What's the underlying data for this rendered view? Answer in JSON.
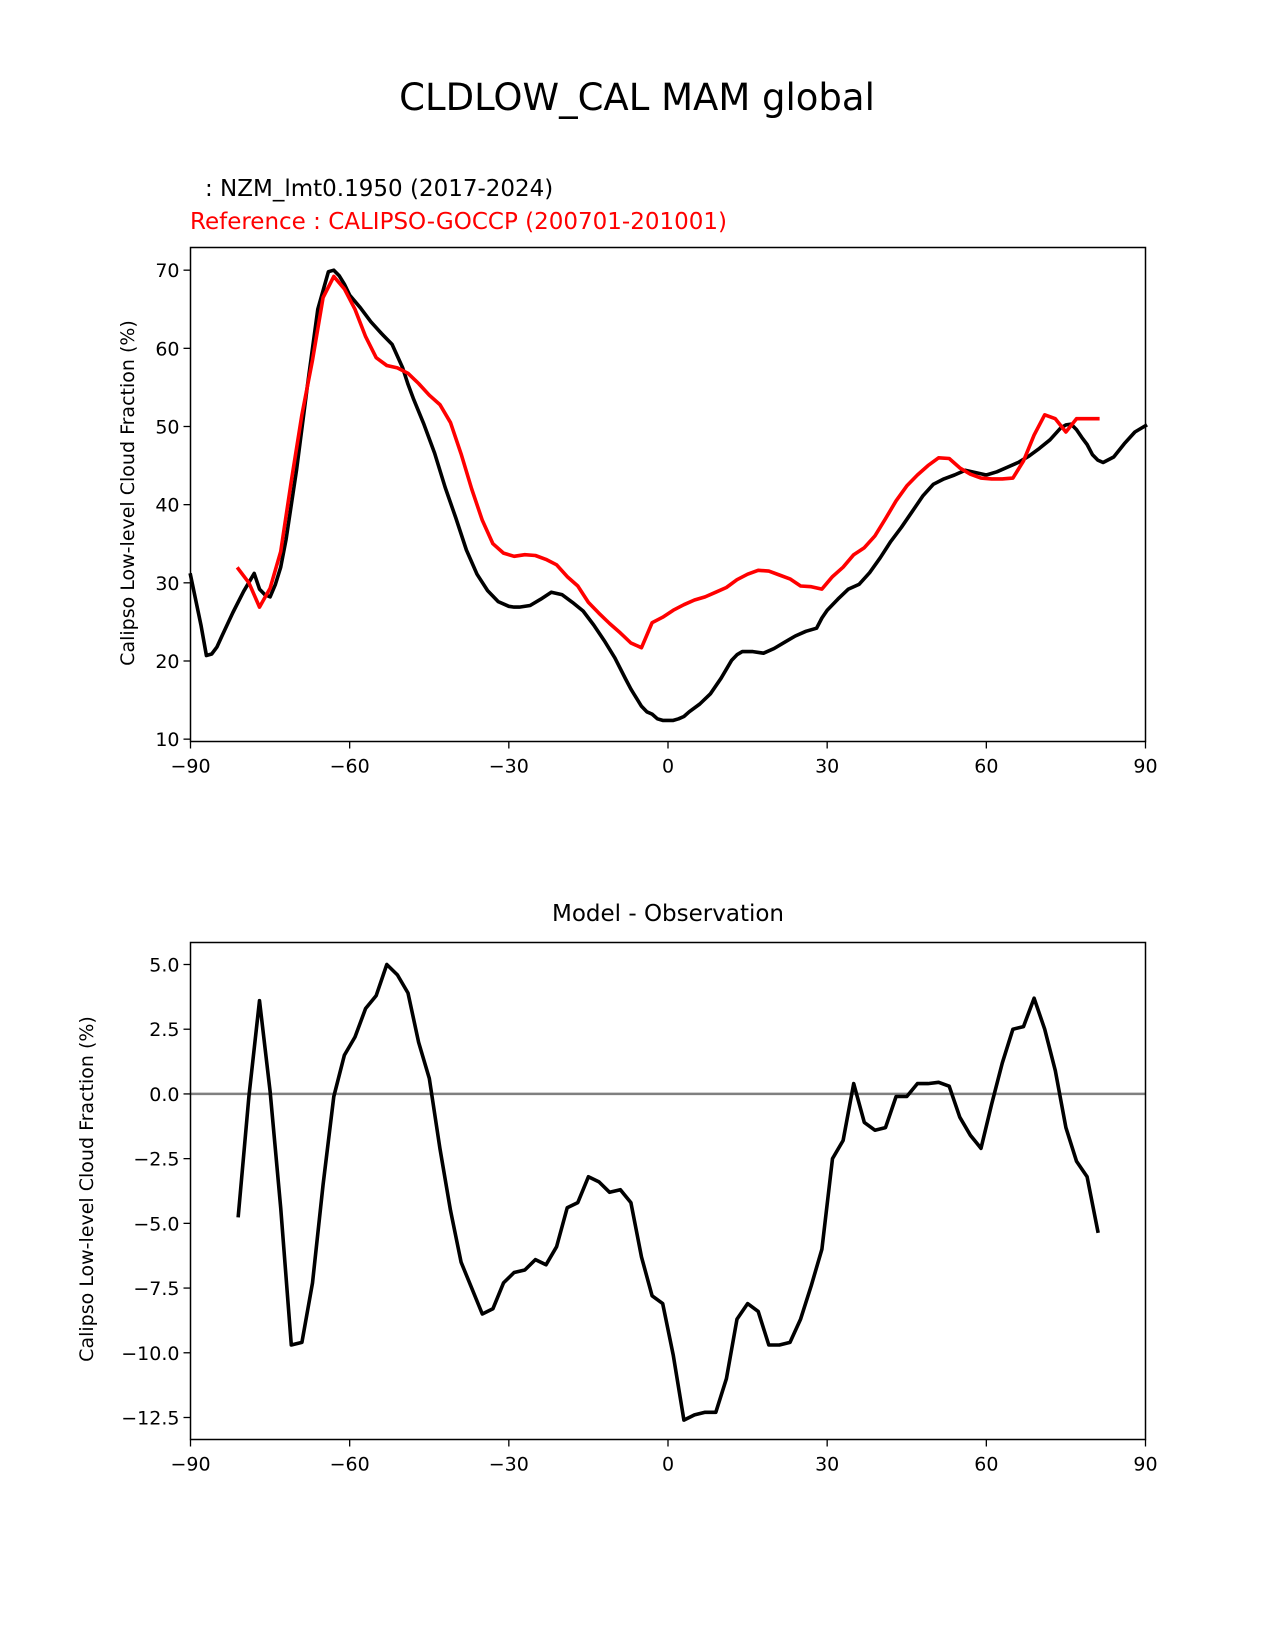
{
  "figure": {
    "suptitle": "CLDLOW_CAL MAM global"
  },
  "chart_data": [
    {
      "type": "line",
      "title_lines": [
        ": NZM_lmt0.1950 (2017-2024)",
        "Reference : CALIPSO-GOCCP (200701-201001)"
      ],
      "title_colors": [
        "#000000",
        "#ff0000"
      ],
      "ylabel": "Calipso Low-level Cloud Fraction (%)",
      "xlim": [
        -90,
        90
      ],
      "ylim": [
        9.7,
        72.9
      ],
      "xticks": [
        -90,
        -60,
        -30,
        0,
        30,
        60,
        90
      ],
      "xtick_labels": [
        "−90",
        "−60",
        "−30",
        "0",
        "30",
        "60",
        "90"
      ],
      "yticks": [
        10,
        20,
        30,
        40,
        50,
        60,
        70
      ],
      "ytick_labels": [
        "10",
        "20",
        "30",
        "40",
        "50",
        "60",
        "70"
      ],
      "series": [
        {
          "name": "NZM_lmt0.1950 (2017-2024)",
          "color": "#000000",
          "x": [
            -90,
            -88,
            -87,
            -86,
            -85,
            -84,
            -82,
            -80,
            -78,
            -77,
            -76,
            -75,
            -74,
            -73,
            -72,
            -71,
            -70,
            -68,
            -66,
            -64,
            -63,
            -62,
            -61,
            -60,
            -58,
            -56,
            -54,
            -52,
            -50,
            -49,
            -48,
            -46,
            -44,
            -42,
            -40,
            -38,
            -36,
            -34,
            -32,
            -30,
            -29,
            -28,
            -26,
            -24,
            -22,
            -20,
            -18,
            -16,
            -14,
            -12,
            -10,
            -8,
            -7,
            -6,
            -5,
            -4,
            -3,
            -2,
            -1,
            0,
            1,
            2,
            3,
            4,
            6,
            8,
            10,
            12,
            13,
            14,
            16,
            18,
            20,
            22,
            24,
            26,
            28,
            29,
            30,
            32,
            34,
            36,
            38,
            40,
            42,
            44,
            46,
            48,
            50,
            52,
            54,
            56,
            58,
            60,
            62,
            64,
            66,
            67,
            68,
            69,
            70,
            72,
            74,
            75,
            76,
            77,
            78,
            79,
            80,
            81,
            82,
            84,
            86,
            88,
            90
          ],
          "y": [
            31.0,
            24.5,
            20.7,
            20.9,
            21.8,
            23.3,
            26.2,
            28.9,
            31.2,
            29.2,
            28.5,
            28.2,
            29.8,
            32.0,
            35.5,
            40.0,
            44.5,
            55.0,
            65.0,
            69.8,
            70.0,
            69.3,
            68.2,
            66.8,
            65.2,
            63.4,
            61.9,
            60.5,
            57.5,
            55.4,
            53.6,
            50.3,
            46.6,
            42.2,
            38.3,
            34.2,
            31.1,
            29.0,
            27.6,
            27.0,
            26.9,
            26.9,
            27.1,
            27.9,
            28.8,
            28.5,
            27.5,
            26.4,
            24.6,
            22.6,
            20.4,
            17.7,
            16.4,
            15.3,
            14.2,
            13.5,
            13.2,
            12.6,
            12.4,
            12.4,
            12.4,
            12.6,
            12.9,
            13.5,
            14.5,
            15.8,
            17.8,
            20.1,
            20.8,
            21.2,
            21.2,
            21.0,
            21.6,
            22.4,
            23.2,
            23.8,
            24.2,
            25.5,
            26.5,
            27.9,
            29.2,
            29.8,
            31.3,
            33.2,
            35.3,
            37.1,
            39.1,
            41.1,
            42.6,
            43.3,
            43.8,
            44.4,
            44.1,
            43.8,
            44.2,
            44.8,
            45.4,
            45.8,
            46.2,
            46.7,
            47.2,
            48.3,
            49.8,
            50.2,
            50.3,
            49.6,
            48.6,
            47.7,
            46.4,
            45.7,
            45.4,
            46.1,
            47.8,
            49.3,
            50.1
          ]
        },
        {
          "name": "CALIPSO-GOCCP (200701-201001)",
          "color": "#ff0000",
          "x": [
            -81,
            -79,
            -77,
            -75,
            -73,
            -71,
            -69,
            -67,
            -65,
            -63,
            -61,
            -59,
            -57,
            -55,
            -53,
            -51,
            -49,
            -47,
            -45,
            -43,
            -41,
            -39,
            -37,
            -35,
            -33,
            -31,
            -29,
            -27,
            -25,
            -23,
            -21,
            -19,
            -17,
            -15,
            -13,
            -11,
            -9,
            -7,
            -5,
            -3,
            -1,
            1,
            3,
            5,
            7,
            9,
            11,
            13,
            15,
            17,
            19,
            21,
            23,
            25,
            27,
            29,
            31,
            33,
            35,
            37,
            39,
            41,
            43,
            45,
            47,
            49,
            51,
            53,
            55,
            57,
            59,
            61,
            63,
            65,
            67,
            69,
            71,
            73,
            75,
            77,
            79,
            81
          ],
          "y": [
            31.8,
            30.0,
            26.9,
            29.3,
            34.0,
            43.0,
            51.5,
            58.5,
            66.5,
            69.2,
            67.6,
            65.0,
            61.5,
            58.8,
            57.8,
            57.5,
            56.8,
            55.5,
            54.0,
            52.8,
            50.5,
            46.5,
            42.0,
            38.0,
            35.0,
            33.8,
            33.4,
            33.6,
            33.5,
            33.0,
            32.3,
            30.8,
            29.6,
            27.5,
            26.1,
            24.8,
            23.6,
            22.3,
            21.7,
            24.9,
            25.6,
            26.5,
            27.2,
            27.8,
            28.2,
            28.8,
            29.4,
            30.4,
            31.1,
            31.6,
            31.5,
            31.0,
            30.5,
            29.6,
            29.5,
            29.2,
            30.8,
            32.0,
            33.6,
            34.5,
            36.0,
            38.2,
            40.5,
            42.4,
            43.8,
            45.0,
            46.0,
            45.9,
            44.7,
            43.9,
            43.4,
            43.3,
            43.3,
            43.4,
            45.6,
            48.9,
            51.5,
            51.0,
            49.3,
            51.0,
            51.0,
            51.0
          ]
        }
      ]
    },
    {
      "type": "line",
      "title": "Model - Observation",
      "ylabel": "Calipso Low-level Cloud Fraction (%)",
      "xlim": [
        -90,
        90
      ],
      "ylim": [
        -13.35,
        5.85
      ],
      "xticks": [
        -90,
        -60,
        -30,
        0,
        30,
        60,
        90
      ],
      "xtick_labels": [
        "−90",
        "−60",
        "−30",
        "0",
        "30",
        "60",
        "90"
      ],
      "yticks": [
        5.0,
        2.5,
        0.0,
        -2.5,
        -5.0,
        -7.5,
        -10.0,
        -12.5
      ],
      "ytick_labels": [
        "5.0",
        "2.5",
        "0.0",
        "−2.5",
        "−5.0",
        "−7.5",
        "−10.0",
        "−12.5"
      ],
      "zero_line": {
        "value": 0.0,
        "color": "#808080"
      },
      "series": [
        {
          "name": "Model - Observation",
          "color": "#000000",
          "x": [
            -81,
            -79,
            -77,
            -75,
            -73,
            -71,
            -69,
            -67,
            -65,
            -63,
            -61,
            -59,
            -57,
            -55,
            -53,
            -51,
            -49,
            -47,
            -45,
            -43,
            -41,
            -39,
            -37,
            -35,
            -33,
            -31,
            -29,
            -27,
            -25,
            -23,
            -21,
            -19,
            -17,
            -15,
            -13,
            -11,
            -9,
            -7,
            -5,
            -3,
            -1,
            1,
            3,
            5,
            7,
            9,
            11,
            13,
            15,
            17,
            19,
            21,
            23,
            25,
            27,
            29,
            31,
            33,
            35,
            37,
            39,
            41,
            43,
            45,
            47,
            49,
            51,
            53,
            55,
            57,
            59,
            61,
            63,
            65,
            67,
            69,
            71,
            73,
            75,
            77,
            79,
            81
          ],
          "y": [
            -4.7,
            -0.1,
            3.6,
            0.1,
            -4.4,
            -9.7,
            -9.6,
            -7.3,
            -3.5,
            -0.1,
            1.5,
            2.2,
            3.3,
            3.8,
            5.0,
            4.6,
            3.9,
            2.0,
            0.6,
            -2.1,
            -4.5,
            -6.5,
            -7.5,
            -8.5,
            -8.3,
            -7.3,
            -6.9,
            -6.8,
            -6.4,
            -6.6,
            -5.9,
            -4.4,
            -4.2,
            -3.2,
            -3.4,
            -3.8,
            -3.7,
            -4.2,
            -6.3,
            -7.8,
            -8.1,
            -10.1,
            -12.6,
            -12.4,
            -12.3,
            -12.3,
            -11.0,
            -8.7,
            -8.1,
            -8.4,
            -9.7,
            -9.7,
            -9.6,
            -8.7,
            -7.4,
            -6.0,
            -2.5,
            -1.8,
            0.4,
            -1.1,
            -1.4,
            -1.3,
            -0.1,
            -0.1,
            0.4,
            0.4,
            0.45,
            0.3,
            -0.9,
            -1.6,
            -2.1,
            -0.4,
            1.2,
            2.5,
            2.6,
            3.7,
            2.5,
            0.9,
            -1.3,
            -2.6,
            -3.2,
            -5.3
          ]
        }
      ]
    }
  ]
}
